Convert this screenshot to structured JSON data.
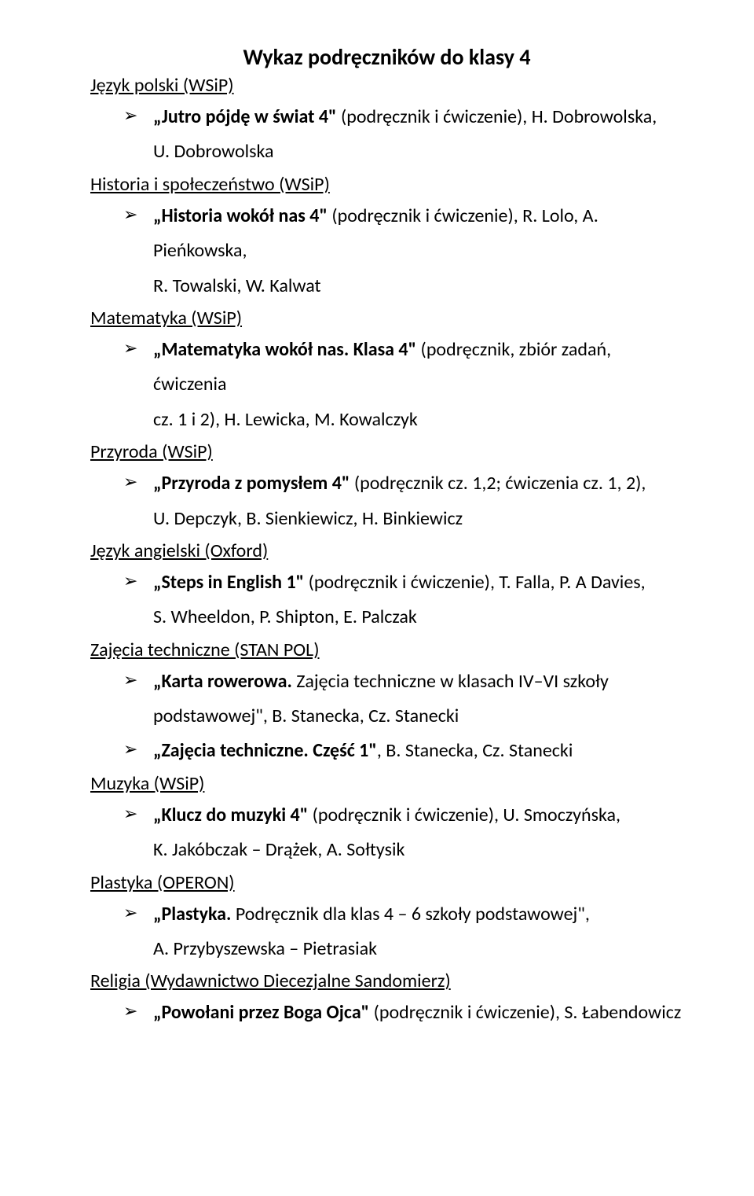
{
  "title": "Wykaz podręczników do klasy 4",
  "bullet_glyph": "➢",
  "colors": {
    "text": "#000000",
    "background": "#ffffff"
  },
  "typography": {
    "title_fontsize": 28,
    "body_fontsize": 24,
    "line_height": 1.85,
    "font_family": "Calibri"
  },
  "sections": [
    {
      "heading": "Język polski (WSiP)",
      "items": [
        {
          "line1_bold": "„Jutro pójdę w świat 4\" ",
          "line1_rest": "(podręcznik i ćwiczenie), H. Dobrowolska,",
          "line2": "U. Dobrowolska"
        }
      ]
    },
    {
      "heading": "Historia i społeczeństwo (WSiP)",
      "items": [
        {
          "line1_bold": "„Historia wokół nas 4\" ",
          "line1_rest": "(podręcznik i ćwiczenie), R. Lolo, A. Pieńkowska,",
          "line2": "R. Towalski, W. Kalwat"
        }
      ]
    },
    {
      "heading": "Matematyka (WSiP)",
      "items": [
        {
          "line1_bold": "„Matematyka wokół nas. Klasa 4\" ",
          "line1_rest": "(podręcznik, zbiór zadań, ćwiczenia",
          "line2": "cz. 1 i 2), H. Lewicka, M. Kowalczyk"
        }
      ]
    },
    {
      "heading": "Przyroda (WSiP)",
      "items": [
        {
          "line1_bold": "„Przyroda z pomysłem 4\" ",
          "line1_rest": "(podręcznik cz. 1,2; ćwiczenia cz. 1, 2),",
          "line2": "U. Depczyk, B. Sienkiewicz, H. Binkiewicz"
        }
      ]
    },
    {
      "heading": "Język angielski (Oxford)",
      "items": [
        {
          "line1_bold": "„Steps in English 1\" ",
          "line1_rest": "(podręcznik i ćwiczenie), T. Falla, P. A Davies,",
          "line2": "S. Wheeldon, P. Shipton, E. Palczak"
        }
      ]
    },
    {
      "heading": "Zajęcia techniczne (STAN POL)",
      "items": [
        {
          "line1_bold": "„Karta rowerowa. ",
          "line1_rest": "Zajęcia techniczne w klasach IV–VI szkoły",
          "line2": "podstawowej\", B. Stanecka, Cz. Stanecki"
        },
        {
          "line1_bold": "„Zajęcia techniczne. Część 1\"",
          "line1_rest": ", B. Stanecka, Cz. Stanecki"
        }
      ]
    },
    {
      "heading": "Muzyka (WSiP)",
      "items": [
        {
          "line1_bold": "„Klucz do muzyki 4\" ",
          "line1_rest": "(podręcznik i ćwiczenie), U. Smoczyńska,",
          "line2": "K. Jakóbczak – Drążek, A. Sołtysik"
        }
      ]
    },
    {
      "heading": "Plastyka (OPERON)",
      "items": [
        {
          "line1_bold": "„Plastyka. ",
          "line1_rest": "Podręcznik dla klas 4 – 6 szkoły podstawowej\",",
          "line2": "A. Przybyszewska – Pietrasiak"
        }
      ]
    },
    {
      "heading": "Religia (Wydawnictwo Diecezjalne Sandomierz)",
      "items": [
        {
          "line1_bold": "„Powołani przez Boga Ojca\" ",
          "line1_rest": "(podręcznik i ćwiczenie), S. Łabendowicz"
        }
      ]
    }
  ]
}
